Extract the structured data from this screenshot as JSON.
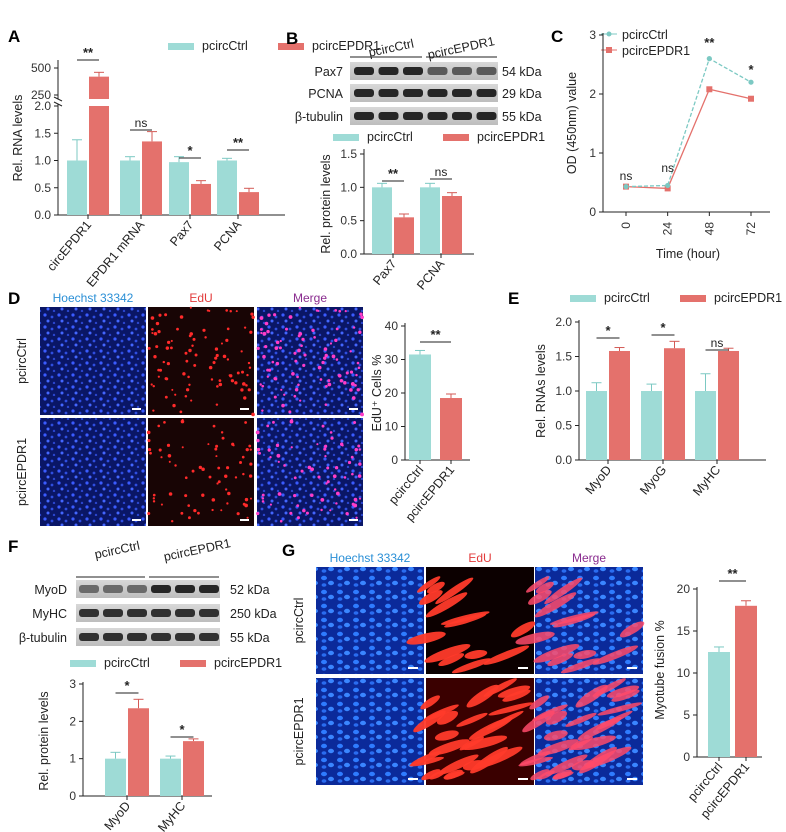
{
  "colors": {
    "ctrl": "#9edbd6",
    "epdr": "#e4716c",
    "ctrl_dark": "#7cc9c3",
    "epdr_dark": "#d35a55"
  },
  "legend": {
    "ctrl": "pcircCtrl",
    "epdr": "pcircEPDR1"
  },
  "chart_data": [
    {
      "panel": "A",
      "type": "bar",
      "ylabel": "Rel. RNA levels",
      "categories": [
        "circEPDR1",
        "EPDR1 mRNA",
        "Pax7",
        "PCNA"
      ],
      "yticks_lower": [
        "0.0",
        "0.5",
        "1.0",
        "1.5",
        "2.0"
      ],
      "yticks_upper": [
        "250",
        "500"
      ],
      "series": [
        {
          "name": "pcircCtrl",
          "values": [
            1.0,
            1.0,
            0.97,
            1.0
          ],
          "errors": [
            0.38,
            0.07,
            0.1,
            0.04
          ]
        },
        {
          "name": "pcircEPDR1",
          "values": [
            420,
            1.35,
            0.57,
            0.42
          ],
          "errors": [
            40,
            0.18,
            0.06,
            0.07
          ]
        }
      ],
      "significance": [
        "**",
        "ns",
        "*",
        "**"
      ]
    },
    {
      "panel": "B",
      "type": "bar",
      "ylabel": "Rel.  protein levels",
      "categories": [
        "Pax7",
        "PCNA"
      ],
      "yticks": [
        "0.0",
        "0.5",
        "1.0",
        "1.5"
      ],
      "ylim": [
        0,
        1.5
      ],
      "series": [
        {
          "name": "pcircCtrl",
          "values": [
            1.0,
            1.0
          ],
          "errors": [
            0.06,
            0.06
          ]
        },
        {
          "name": "pcircEPDR1",
          "values": [
            0.55,
            0.87
          ],
          "errors": [
            0.05,
            0.05
          ]
        }
      ],
      "significance": [
        "**",
        "ns"
      ],
      "blot_rows": [
        "Pax7",
        "PCNA",
        "β-tubulin"
      ],
      "blot_sizes": [
        "54 kDa",
        "29 kDa",
        "55 kDa"
      ],
      "blot_groups": [
        "pcircCtrl",
        "pcircEPDR1"
      ]
    },
    {
      "panel": "C",
      "type": "line",
      "ylabel": "OD (450nm) value",
      "xlabel": "Time (hour)",
      "x": [
        0,
        24,
        48,
        72
      ],
      "xticks": [
        "0",
        "24",
        "48",
        "72"
      ],
      "yticks": [
        "0",
        "1",
        "2",
        "3"
      ],
      "ylim": [
        0,
        3
      ],
      "series": [
        {
          "name": "pcircCtrl",
          "values": [
            0.43,
            0.45,
            2.6,
            2.2
          ]
        },
        {
          "name": "pcircEPDR1",
          "values": [
            0.43,
            0.4,
            2.08,
            1.92
          ]
        }
      ],
      "significance": [
        "ns",
        "ns",
        "**",
        "*"
      ]
    },
    {
      "panel": "D",
      "type": "bar",
      "ylabel": "EdU⁺ Cells %",
      "categories": [
        "pcircCtrl",
        "pcircEPDR1"
      ],
      "yticks": [
        "0",
        "10",
        "20",
        "30",
        "40"
      ],
      "ylim": [
        0,
        40
      ],
      "values": [
        31.5,
        18.5
      ],
      "errors": [
        1.2,
        1.2
      ],
      "significance": [
        "**"
      ],
      "images": {
        "cols": [
          "Hoechst 33342",
          "EdU",
          "Merge"
        ],
        "rows": [
          "pcircCtrl",
          "pcircEPDR1"
        ]
      }
    },
    {
      "panel": "E",
      "type": "bar",
      "ylabel": "Rel. RNAs levels",
      "categories": [
        "MyoD",
        "MyoG",
        "MyHC"
      ],
      "yticks": [
        "0.0",
        "0.5",
        "1.0",
        "1.5",
        "2.0"
      ],
      "ylim": [
        0,
        2
      ],
      "series": [
        {
          "name": "pcircCtrl",
          "values": [
            1.0,
            1.0,
            1.0
          ],
          "errors": [
            0.12,
            0.1,
            0.25
          ]
        },
        {
          "name": "pcircEPDR1",
          "values": [
            1.58,
            1.62,
            1.58
          ],
          "errors": [
            0.05,
            0.1,
            0.04
          ]
        }
      ],
      "significance": [
        "*",
        "*",
        "ns"
      ]
    },
    {
      "panel": "F",
      "type": "bar",
      "ylabel": "Rel.  protein levels",
      "categories": [
        "MyoD",
        "MyHC"
      ],
      "yticks": [
        "0",
        "1",
        "2",
        "3"
      ],
      "ylim": [
        0,
        3
      ],
      "series": [
        {
          "name": "pcircCtrl",
          "values": [
            1.0,
            1.0
          ],
          "errors": [
            0.17,
            0.07
          ]
        },
        {
          "name": "pcircEPDR1",
          "values": [
            2.35,
            1.47
          ],
          "errors": [
            0.24,
            0.06
          ]
        }
      ],
      "significance": [
        "*",
        "*"
      ],
      "blot_rows": [
        "MyoD",
        "MyHC",
        "β-tubulin"
      ],
      "blot_sizes": [
        "52 kDa",
        "250 kDa",
        "55 kDa"
      ],
      "blot_groups": [
        "pcircCtrl",
        "pcircEPDR1"
      ]
    },
    {
      "panel": "G",
      "type": "bar",
      "ylabel": "Myotube fusion %",
      "categories": [
        "pcircCtrl",
        "pcircEPDR1"
      ],
      "yticks": [
        "0",
        "5",
        "10",
        "15",
        "20"
      ],
      "ylim": [
        0,
        20
      ],
      "values": [
        12.5,
        18
      ],
      "errors": [
        0.6,
        0.6
      ],
      "significance": [
        "**"
      ],
      "images": {
        "cols": [
          "Hoechst 33342",
          "EdU",
          "Merge"
        ],
        "rows": [
          "pcircCtrl",
          "pcircEPDR1"
        ]
      }
    }
  ],
  "panel_letters": [
    "A",
    "B",
    "C",
    "D",
    "E",
    "F",
    "G"
  ]
}
